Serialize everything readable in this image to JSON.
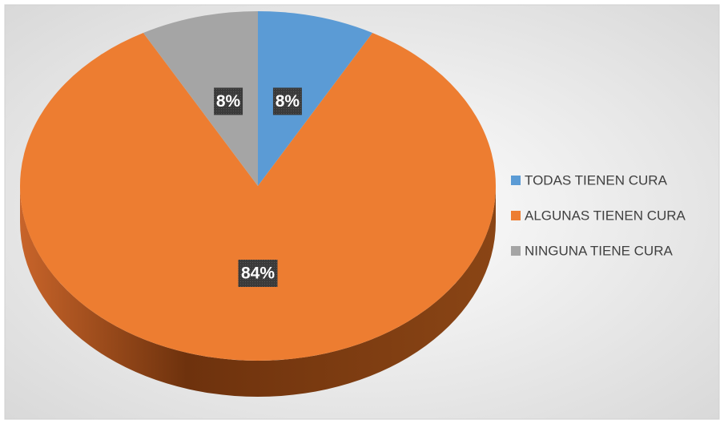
{
  "chart_data": {
    "type": "pie",
    "categories": [
      "TODAS TIENEN CURA",
      "ALGUNAS TIENEN CURA",
      "NINGUNA TIENE CURA"
    ],
    "values": [
      8,
      84,
      8
    ],
    "value_labels": [
      "8%",
      "84%",
      "8%"
    ],
    "colors": [
      "#5b9bd5",
      "#ed7d31",
      "#a5a5a5"
    ],
    "legend": "right"
  }
}
